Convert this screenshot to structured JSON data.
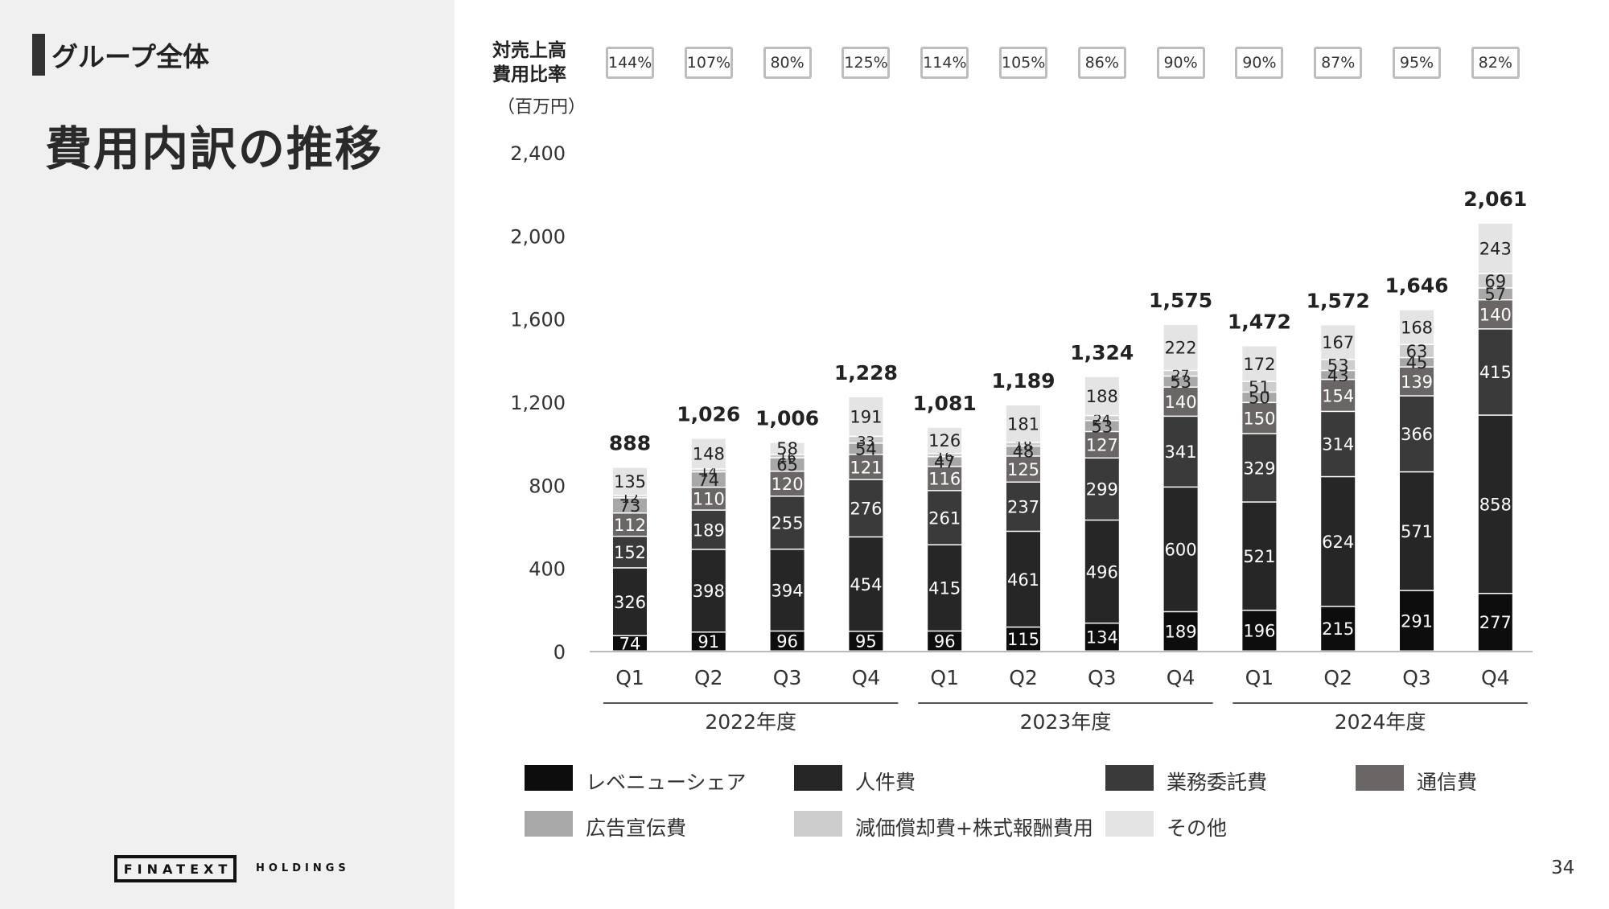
{
  "header": {
    "section_label": "グループ全体",
    "title": "費用内訳の推移"
  },
  "logo": {
    "main": "FINATEXT",
    "sub": "HOLDINGS"
  },
  "page_number": "34",
  "ratio": {
    "label_line1": "対売上高",
    "label_line2": "費用比率",
    "values": [
      "144%",
      "107%",
      "80%",
      "125%",
      "114%",
      "105%",
      "86%",
      "90%",
      "90%",
      "87%",
      "95%",
      "82%"
    ]
  },
  "chart_data": {
    "type": "bar",
    "stacked": true,
    "unit_label": "（百万円）",
    "categories": [
      "Q1",
      "Q2",
      "Q3",
      "Q4",
      "Q1",
      "Q2",
      "Q3",
      "Q4",
      "Q1",
      "Q2",
      "Q3",
      "Q4"
    ],
    "fiscal_years": [
      {
        "label": "2022年度",
        "from": 0,
        "to": 3
      },
      {
        "label": "2023年度",
        "from": 4,
        "to": 7
      },
      {
        "label": "2024年度",
        "from": 8,
        "to": 11
      }
    ],
    "ylim": [
      0,
      2400
    ],
    "yticks": [
      0,
      400,
      800,
      1200,
      1600,
      2000,
      2400
    ],
    "ytick_labels": [
      "0",
      "400",
      "800",
      "1,200",
      "1,600",
      "2,000",
      "2,400"
    ],
    "totals": [
      888,
      1026,
      1006,
      1228,
      1081,
      1189,
      1324,
      1575,
      1472,
      1572,
      1646,
      2061
    ],
    "total_labels": [
      "888",
      "1,026",
      "1,006",
      "1,228",
      "1,081",
      "1,189",
      "1,324",
      "1,575",
      "1,472",
      "1,572",
      "1,646",
      "2,061"
    ],
    "series": [
      {
        "name": "レベニューシェア",
        "color": "#0d0d0d",
        "label_color": "#ffffff",
        "values": [
          74,
          91,
          96,
          95,
          96,
          115,
          134,
          189,
          196,
          215,
          291,
          277
        ]
      },
      {
        "name": "人件費",
        "color": "#262626",
        "label_color": "#ffffff",
        "values": [
          326,
          398,
          394,
          454,
          415,
          461,
          496,
          600,
          521,
          624,
          571,
          858
        ]
      },
      {
        "name": "業務委託費",
        "color": "#3a3a3a",
        "label_color": "#ffffff",
        "values": [
          152,
          189,
          255,
          276,
          261,
          237,
          299,
          341,
          329,
          314,
          366,
          415
        ]
      },
      {
        "name": "通信費",
        "color": "#6b6666",
        "label_color": "#ffffff",
        "values": [
          112,
          110,
          120,
          121,
          116,
          125,
          127,
          140,
          150,
          154,
          139,
          140
        ]
      },
      {
        "name": "広告宣伝費",
        "color": "#a8a8a8",
        "label_color": "#222222",
        "values": [
          73,
          74,
          65,
          54,
          47,
          48,
          53,
          53,
          50,
          43,
          45,
          57
        ]
      },
      {
        "name": "減価償却費+株式報酬費用",
        "color": "#cdcdcd",
        "label_color": "#222222",
        "values": [
          12,
          14,
          16,
          33,
          16,
          18,
          24,
          27,
          51,
          53,
          63,
          69
        ]
      },
      {
        "name": "その他",
        "color": "#e4e4e4",
        "label_color": "#222222",
        "values": [
          135,
          148,
          58,
          191,
          126,
          181,
          188,
          222,
          172,
          167,
          168,
          243
        ]
      }
    ]
  }
}
